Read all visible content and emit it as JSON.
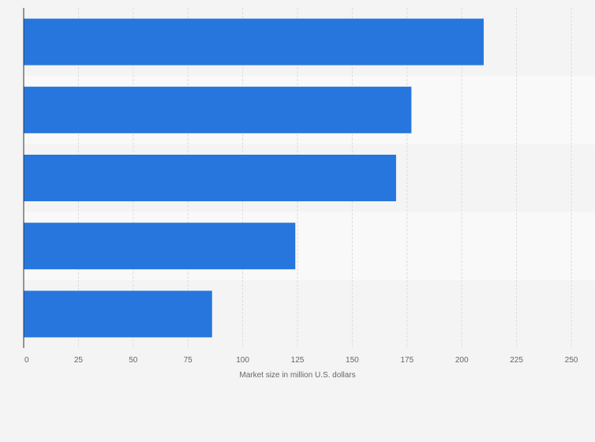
{
  "chart_data": {
    "type": "bar",
    "orientation": "horizontal",
    "categories": [
      "",
      "",
      "",
      "",
      ""
    ],
    "values": [
      210,
      177,
      170,
      124,
      86
    ],
    "xlabel": "Market size in million U.S. dollars",
    "ylabel": "",
    "xlim": [
      0,
      250
    ],
    "xticks": [
      "0",
      "25",
      "50",
      "75",
      "100",
      "125",
      "150",
      "175",
      "200",
      "225",
      "250"
    ],
    "grid": "vertical dashed",
    "legend": "none",
    "colors": {
      "bar": "#2776dd",
      "band_dark": "#f4f4f4",
      "band_light": "#f9f9f9",
      "grid": "#dddddd",
      "axis": "#333333",
      "text": "#666666"
    }
  }
}
